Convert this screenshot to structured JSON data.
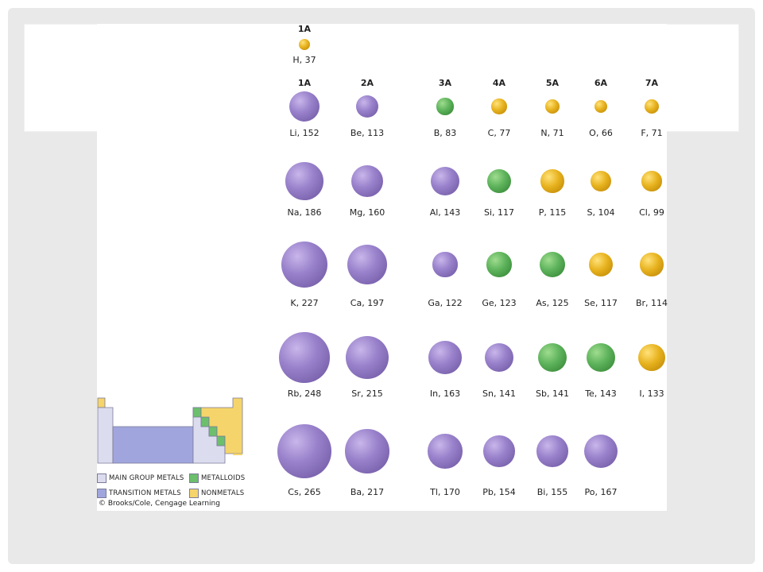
{
  "colors": {
    "main_group_metal": "#8f78c0",
    "metalloid": "#4fa24f",
    "nonmetal": "#e0a81a",
    "main_group_swatch": "#dcdcef",
    "transition_swatch": "#a0a6dd",
    "metalloid_swatch": "#6cbf6c",
    "nonmetal_swatch": "#f5d46b"
  },
  "groups": {
    "h_group": "1A",
    "row_headers": [
      "1A",
      "2A",
      "3A",
      "4A",
      "5A",
      "6A",
      "7A"
    ]
  },
  "elements": [
    {
      "symbol": "H",
      "radius_pm": 37,
      "label": "H, 37",
      "type": "nonmetal",
      "group": "1A",
      "row": 1
    },
    {
      "symbol": "Li",
      "radius_pm": 152,
      "label": "Li, 152",
      "type": "metal",
      "group": "1A",
      "row": 2
    },
    {
      "symbol": "Be",
      "radius_pm": 113,
      "label": "Be, 113",
      "type": "metal",
      "group": "2A",
      "row": 2
    },
    {
      "symbol": "B",
      "radius_pm": 83,
      "label": "B, 83",
      "type": "metalloid",
      "group": "3A",
      "row": 2
    },
    {
      "symbol": "C",
      "radius_pm": 77,
      "label": "C, 77",
      "type": "nonmetal",
      "group": "4A",
      "row": 2
    },
    {
      "symbol": "N",
      "radius_pm": 71,
      "label": "N, 71",
      "type": "nonmetal",
      "group": "5A",
      "row": 2
    },
    {
      "symbol": "O",
      "radius_pm": 66,
      "label": "O, 66",
      "type": "nonmetal",
      "group": "6A",
      "row": 2
    },
    {
      "symbol": "F",
      "radius_pm": 71,
      "label": "F, 71",
      "type": "nonmetal",
      "group": "7A",
      "row": 2
    },
    {
      "symbol": "Na",
      "radius_pm": 186,
      "label": "Na, 186",
      "type": "metal",
      "group": "1A",
      "row": 3
    },
    {
      "symbol": "Mg",
      "radius_pm": 160,
      "label": "Mg, 160",
      "type": "metal",
      "group": "2A",
      "row": 3
    },
    {
      "symbol": "Al",
      "radius_pm": 143,
      "label": "Al, 143",
      "type": "metal",
      "group": "3A",
      "row": 3
    },
    {
      "symbol": "Si",
      "radius_pm": 117,
      "label": "Si, 117",
      "type": "metalloid",
      "group": "4A",
      "row": 3
    },
    {
      "symbol": "P",
      "radius_pm": 115,
      "label": "P, 115",
      "type": "nonmetal",
      "group": "5A",
      "row": 3
    },
    {
      "symbol": "S",
      "radius_pm": 104,
      "label": "S, 104",
      "type": "nonmetal",
      "group": "6A",
      "row": 3
    },
    {
      "symbol": "Cl",
      "radius_pm": 99,
      "label": "Cl, 99",
      "type": "nonmetal",
      "group": "7A",
      "row": 3
    },
    {
      "symbol": "K",
      "radius_pm": 227,
      "label": "K, 227",
      "type": "metal",
      "group": "1A",
      "row": 4
    },
    {
      "symbol": "Ca",
      "radius_pm": 197,
      "label": "Ca, 197",
      "type": "metal",
      "group": "2A",
      "row": 4
    },
    {
      "symbol": "Ga",
      "radius_pm": 122,
      "label": "Ga, 122",
      "type": "metal",
      "group": "3A",
      "row": 4
    },
    {
      "symbol": "Ge",
      "radius_pm": 123,
      "label": "Ge, 123",
      "type": "metalloid",
      "group": "4A",
      "row": 4
    },
    {
      "symbol": "As",
      "radius_pm": 125,
      "label": "As, 125",
      "type": "metalloid",
      "group": "5A",
      "row": 4
    },
    {
      "symbol": "Se",
      "radius_pm": 117,
      "label": "Se, 117",
      "type": "nonmetal",
      "group": "6A",
      "row": 4
    },
    {
      "symbol": "Br",
      "radius_pm": 114,
      "label": "Br, 114",
      "type": "nonmetal",
      "group": "7A",
      "row": 4
    },
    {
      "symbol": "Rb",
      "radius_pm": 248,
      "label": "Rb, 248",
      "type": "metal",
      "group": "1A",
      "row": 5
    },
    {
      "symbol": "Sr",
      "radius_pm": 215,
      "label": "Sr, 215",
      "type": "metal",
      "group": "2A",
      "row": 5
    },
    {
      "symbol": "In",
      "radius_pm": 163,
      "label": "In, 163",
      "type": "metal",
      "group": "3A",
      "row": 5
    },
    {
      "symbol": "Sn",
      "radius_pm": 141,
      "label": "Sn, 141",
      "type": "metal",
      "group": "4A",
      "row": 5
    },
    {
      "symbol": "Sb",
      "radius_pm": 141,
      "label": "Sb, 141",
      "type": "metalloid",
      "group": "5A",
      "row": 5
    },
    {
      "symbol": "Te",
      "radius_pm": 143,
      "label": "Te, 143",
      "type": "metalloid",
      "group": "6A",
      "row": 5
    },
    {
      "symbol": "I",
      "radius_pm": 133,
      "label": "I, 133",
      "type": "nonmetal",
      "group": "7A",
      "row": 5
    },
    {
      "symbol": "Cs",
      "radius_pm": 265,
      "label": "Cs, 265",
      "type": "metal",
      "group": "1A",
      "row": 6
    },
    {
      "symbol": "Ba",
      "radius_pm": 217,
      "label": "Ba, 217",
      "type": "metal",
      "group": "2A",
      "row": 6
    },
    {
      "symbol": "Tl",
      "radius_pm": 170,
      "label": "Tl, 170",
      "type": "metal",
      "group": "3A",
      "row": 6
    },
    {
      "symbol": "Pb",
      "radius_pm": 154,
      "label": "Pb, 154",
      "type": "metal",
      "group": "4A",
      "row": 6
    },
    {
      "symbol": "Bi",
      "radius_pm": 155,
      "label": "Bi, 155",
      "type": "metal",
      "group": "5A",
      "row": 6
    },
    {
      "symbol": "Po",
      "radius_pm": 167,
      "label": "Po, 167",
      "type": "metal",
      "group": "6A",
      "row": 6
    }
  ],
  "legend": {
    "main_group_metals": "MAIN GROUP METALS",
    "transition_metals": "TRANSITION METALS",
    "metalloids": "METALLOIDS",
    "nonmetals": "NONMETALS"
  },
  "credit": "© Brooks/Cole, Cengage Learning"
}
